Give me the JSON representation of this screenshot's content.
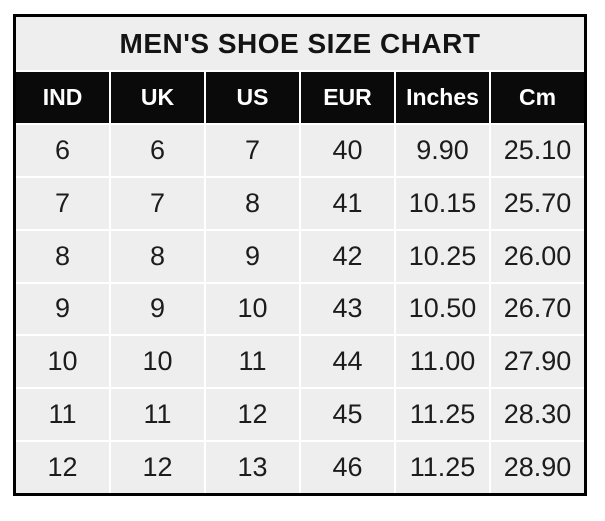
{
  "chart_data": {
    "type": "table",
    "title": "MEN'S SHOE SIZE CHART",
    "columns": [
      "IND",
      "UK",
      "US",
      "EUR",
      "Inches",
      "Cm"
    ],
    "rows": [
      [
        "6",
        "6",
        "7",
        "40",
        "9.90",
        "25.10"
      ],
      [
        "7",
        "7",
        "8",
        "41",
        "10.15",
        "25.70"
      ],
      [
        "8",
        "8",
        "9",
        "42",
        "10.25",
        "26.00"
      ],
      [
        "9",
        "9",
        "10",
        "43",
        "10.50",
        "26.70"
      ],
      [
        "10",
        "10",
        "11",
        "44",
        "11.00",
        "27.90"
      ],
      [
        "11",
        "11",
        "12",
        "45",
        "11.25",
        "28.30"
      ],
      [
        "12",
        "12",
        "13",
        "46",
        "11.25",
        "28.90"
      ]
    ],
    "colors": {
      "page_bg": "#ffffff",
      "table_border": "#000000",
      "header_bg": "#0a0a0a",
      "header_text": "#ffffff",
      "title_bg": "#eeeeee",
      "cell_bg": "#eeeeee",
      "cell_text": "#1c1c1c",
      "grid_line": "#ffffff"
    },
    "layout": {
      "column_count": 6,
      "data_row_count": 7,
      "grid_on": true
    }
  }
}
